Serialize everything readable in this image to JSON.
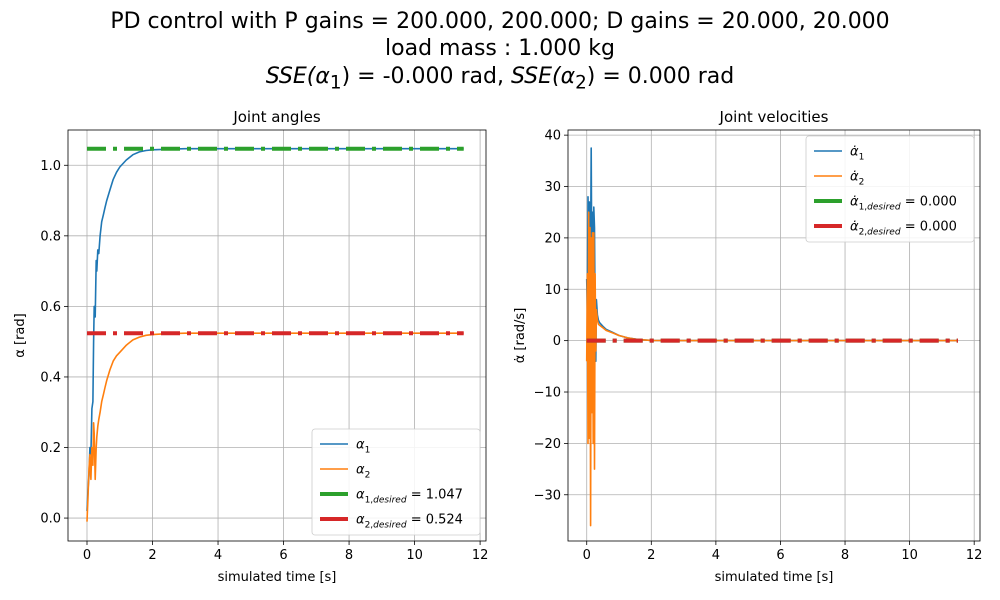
{
  "figure": {
    "title_line1": "PD control with P gains = 200.000, 200.000; D gains = 20.000, 20.000",
    "title_line2": "load mass : 1.000 kg",
    "title_line3_a": "SSE(α",
    "title_line3_b": "1",
    "title_line3_c": ") = -0.000 rad, ",
    "title_line3_d": "SSE(α",
    "title_line3_e": "2",
    "title_line3_f": ") = 0.000 rad"
  },
  "chart_data": [
    {
      "type": "line",
      "title": "Joint angles",
      "xlabel": "simulated time [s]",
      "ylabel": "α [rad]",
      "xlim": [
        -0.58,
        12.18
      ],
      "ylim": [
        -0.065,
        1.1
      ],
      "xticks": [
        0,
        2,
        4,
        6,
        8,
        10,
        12
      ],
      "yticks": [
        0.0,
        0.2,
        0.4,
        0.6,
        0.8,
        1.0
      ],
      "ytick_labels": [
        "0.0",
        "0.2",
        "0.4",
        "0.6",
        "0.8",
        "1.0"
      ],
      "grid": true,
      "legend_position": "lower-right",
      "series": [
        {
          "name": "α1",
          "color": "#1f77b4",
          "style": "solid",
          "x": [
            0,
            0.03,
            0.06,
            0.09,
            0.12,
            0.15,
            0.18,
            0.2,
            0.22,
            0.25,
            0.28,
            0.3,
            0.33,
            0.36,
            0.4,
            0.45,
            0.5,
            0.55,
            0.6,
            0.7,
            0.8,
            0.9,
            1.0,
            1.2,
            1.4,
            1.6,
            1.8,
            2.0,
            2.3,
            2.6,
            3.0,
            4,
            6,
            8,
            10,
            11.5
          ],
          "y": [
            0.02,
            0.08,
            0.12,
            0.2,
            0.18,
            0.31,
            0.33,
            0.5,
            0.6,
            0.57,
            0.73,
            0.7,
            0.76,
            0.75,
            0.8,
            0.84,
            0.86,
            0.88,
            0.9,
            0.93,
            0.96,
            0.98,
            0.995,
            1.015,
            1.03,
            1.038,
            1.042,
            1.044,
            1.045,
            1.046,
            1.047,
            1.047,
            1.047,
            1.047,
            1.047,
            1.047
          ]
        },
        {
          "name": "α2",
          "color": "#ff7f0e",
          "style": "solid",
          "x": [
            0,
            0.03,
            0.06,
            0.09,
            0.12,
            0.15,
            0.18,
            0.2,
            0.22,
            0.25,
            0.28,
            0.3,
            0.33,
            0.36,
            0.4,
            0.45,
            0.5,
            0.55,
            0.6,
            0.7,
            0.8,
            0.9,
            1.0,
            1.2,
            1.4,
            1.6,
            1.8,
            2.0,
            2.3,
            2.6,
            3.0,
            4,
            6,
            8,
            10,
            11.5
          ],
          "y": [
            -0.01,
            0.06,
            0.14,
            0.18,
            0.11,
            0.2,
            0.15,
            0.27,
            0.24,
            0.11,
            0.2,
            0.23,
            0.26,
            0.28,
            0.3,
            0.33,
            0.35,
            0.37,
            0.39,
            0.42,
            0.445,
            0.46,
            0.47,
            0.49,
            0.505,
            0.513,
            0.518,
            0.52,
            0.522,
            0.523,
            0.524,
            0.524,
            0.524,
            0.524,
            0.524,
            0.524
          ]
        },
        {
          "name": "α1,desired = 1.047",
          "color": "#2ca02c",
          "style": "dashdot",
          "x": [
            0,
            11.5
          ],
          "y": [
            1.047,
            1.047
          ]
        },
        {
          "name": "α2,desired = 0.524",
          "color": "#d62728",
          "style": "dashdot",
          "x": [
            0,
            11.5
          ],
          "y": [
            0.524,
            0.524
          ]
        }
      ]
    },
    {
      "type": "line",
      "title": "Joint velocities",
      "xlabel": "simulated time [s]",
      "ylabel": "α̇ [rad/s]",
      "xlim": [
        -0.58,
        12.18
      ],
      "ylim": [
        -39,
        41
      ],
      "xticks": [
        0,
        2,
        4,
        6,
        8,
        10,
        12
      ],
      "yticks": [
        -30,
        -20,
        -10,
        0,
        10,
        20,
        30,
        40
      ],
      "ytick_labels": [
        "−30",
        "−20",
        "−10",
        "0",
        "10",
        "20",
        "30",
        "40"
      ],
      "grid": true,
      "legend_position": "upper-right",
      "series": [
        {
          "name": "α̇1",
          "color": "#1f77b4",
          "style": "solid",
          "x": [
            0,
            0.02,
            0.04,
            0.06,
            0.08,
            0.1,
            0.12,
            0.14,
            0.16,
            0.18,
            0.2,
            0.22,
            0.24,
            0.26,
            0.28,
            0.3,
            0.33,
            0.36,
            0.4,
            0.5,
            0.6,
            0.8,
            1.0,
            1.3,
            1.6,
            2.0,
            3,
            5,
            8,
            11.5
          ],
          "y": [
            12,
            5,
            28,
            17,
            27,
            24,
            18,
            37.5,
            10,
            25,
            4,
            26,
            22,
            5,
            -4,
            8,
            5,
            4,
            3.5,
            2.8,
            2.2,
            1.6,
            1.0,
            0.5,
            0.2,
            0.05,
            0,
            0,
            0,
            0
          ]
        },
        {
          "name": "α̇2",
          "color": "#ff7f0e",
          "style": "solid",
          "x": [
            0,
            0.02,
            0.04,
            0.06,
            0.08,
            0.1,
            0.12,
            0.14,
            0.16,
            0.18,
            0.2,
            0.22,
            0.24,
            0.26,
            0.28,
            0.3,
            0.33,
            0.36,
            0.4,
            0.5,
            0.6,
            0.8,
            1.0,
            1.3,
            1.6,
            2.0,
            3,
            5,
            8,
            11.5
          ],
          "y": [
            -4,
            13,
            -20,
            25,
            -19,
            22,
            -36,
            20,
            -14,
            21,
            -20,
            21,
            -25,
            13,
            -2,
            6,
            4,
            3.2,
            3,
            2.5,
            2,
            1.5,
            1.0,
            0.5,
            0.2,
            0.05,
            0,
            0,
            0,
            0
          ]
        },
        {
          "name": "α̇1,desired = 0.000",
          "color": "#2ca02c",
          "style": "dashdot",
          "x": [
            0,
            11.5
          ],
          "y": [
            0,
            0
          ]
        },
        {
          "name": "α̇2,desired = 0.000",
          "color": "#d62728",
          "style": "dashdot",
          "x": [
            0,
            11.5
          ],
          "y": [
            0,
            0
          ]
        }
      ]
    }
  ]
}
